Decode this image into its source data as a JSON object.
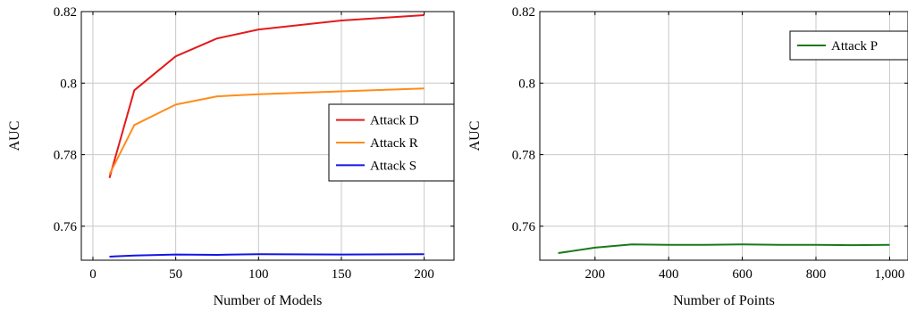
{
  "chart_data": [
    {
      "type": "line",
      "xlabel": "Number of Models",
      "ylabel": "AUC",
      "xlim": [
        -7,
        218
      ],
      "ylim": [
        0.7505,
        0.82
      ],
      "xticks": [
        0,
        50,
        100,
        150,
        200
      ],
      "xtick_labels": [
        "0",
        "50",
        "100",
        "150",
        "200"
      ],
      "yticks": [
        0.76,
        0.78,
        0.8,
        0.82
      ],
      "ytick_labels": [
        "0.76",
        "0.78",
        "0.8",
        "0.82"
      ],
      "grid": true,
      "legend_position": "right",
      "series": [
        {
          "name": "Attack D",
          "color": "#e41a1c",
          "x": [
            10,
            25,
            50,
            75,
            100,
            150,
            200
          ],
          "y": [
            0.7735,
            0.798,
            0.8075,
            0.8125,
            0.815,
            0.8175,
            0.819
          ]
        },
        {
          "name": "Attack R",
          "color": "#ff8c1a",
          "x": [
            10,
            25,
            50,
            75,
            100,
            150,
            200
          ],
          "y": [
            0.7745,
            0.7883,
            0.794,
            0.7963,
            0.7969,
            0.7977,
            0.7985
          ]
        },
        {
          "name": "Attack S",
          "color": "#1414e6",
          "x": [
            10,
            25,
            50,
            75,
            100,
            150,
            200
          ],
          "y": [
            0.7515,
            0.7518,
            0.7521,
            0.752,
            0.7522,
            0.7521,
            0.7522
          ]
        }
      ]
    },
    {
      "type": "line",
      "xlabel": "Number of Points",
      "ylabel": "AUC",
      "xlim": [
        50,
        1050
      ],
      "ylim": [
        0.7505,
        0.82
      ],
      "xticks": [
        200,
        400,
        600,
        800,
        1000
      ],
      "xtick_labels": [
        "200",
        "400",
        "600",
        "800",
        "1,000"
      ],
      "yticks": [
        0.76,
        0.78,
        0.8,
        0.82
      ],
      "ytick_labels": [
        "0.76",
        "0.78",
        "0.8",
        "0.82"
      ],
      "grid": true,
      "legend_position": "top-right",
      "series": [
        {
          "name": "Attack P",
          "color": "#1a7a1a",
          "x": [
            100,
            200,
            300,
            400,
            500,
            600,
            700,
            800,
            900,
            1000
          ],
          "y": [
            0.7525,
            0.754,
            0.7549,
            0.7548,
            0.7548,
            0.7549,
            0.7548,
            0.7548,
            0.7547,
            0.7548
          ]
        }
      ]
    }
  ]
}
